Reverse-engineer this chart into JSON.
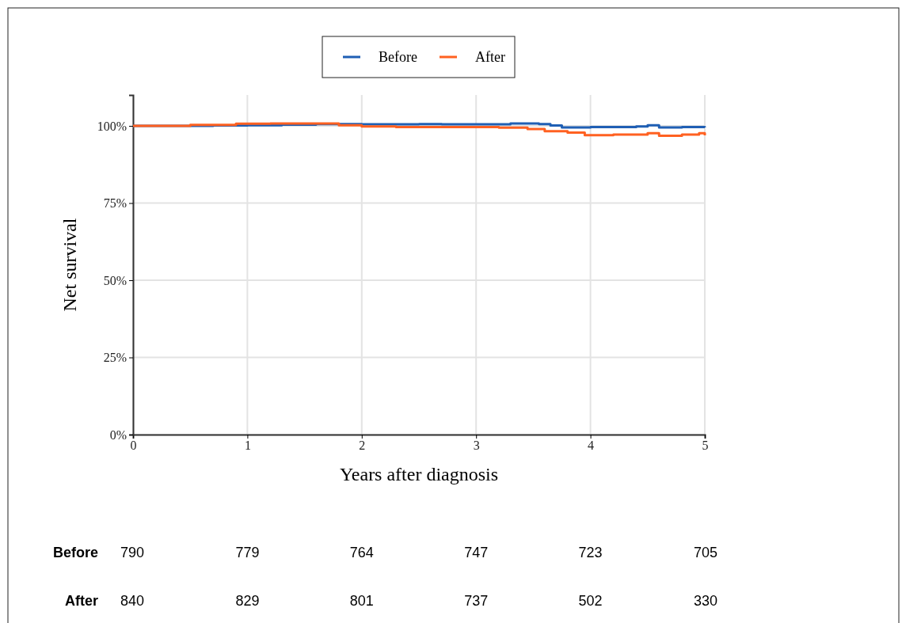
{
  "chart_data": {
    "type": "step",
    "xlabel": "Years after diagnosis",
    "ylabel": "Net survival",
    "xlim": [
      0,
      5
    ],
    "xticks": [
      0,
      1,
      2,
      3,
      4,
      5
    ],
    "ylim": [
      0,
      110
    ],
    "yticks": [
      {
        "value": 0,
        "label": "0%"
      },
      {
        "value": 25,
        "label": "25%"
      },
      {
        "value": 50,
        "label": "50%"
      },
      {
        "value": 75,
        "label": "75%"
      },
      {
        "value": 100,
        "label": "100%"
      }
    ],
    "grid": true,
    "legend": "top",
    "line_style": "solid",
    "marker": "none",
    "series": [
      {
        "name": "Before",
        "color": "#1f5fb4",
        "x": [
          0,
          0.7,
          1.0,
          1.3,
          1.6,
          2.0,
          2.5,
          2.7,
          3.0,
          3.3,
          3.55,
          3.65,
          3.75,
          4.0,
          4.4,
          4.5,
          4.6,
          4.8,
          5.0
        ],
        "values": [
          100,
          100.1,
          100.2,
          100.4,
          100.6,
          100.5,
          100.6,
          100.5,
          100.5,
          100.8,
          100.6,
          100.1,
          99.5,
          99.6,
          99.8,
          100.2,
          99.5,
          99.6,
          99.5
        ]
      },
      {
        "name": "After",
        "color": "#ff6121",
        "x": [
          0,
          0.5,
          0.9,
          1.2,
          1.6,
          1.8,
          2.0,
          2.3,
          3.0,
          3.2,
          3.45,
          3.6,
          3.8,
          3.95,
          4.2,
          4.5,
          4.6,
          4.8,
          4.95,
          5.0
        ],
        "values": [
          100,
          100.3,
          100.7,
          100.8,
          100.8,
          100.2,
          99.8,
          99.6,
          99.6,
          99.4,
          99.0,
          98.3,
          97.8,
          97.0,
          97.2,
          97.6,
          96.8,
          97.2,
          97.6,
          96.9
        ]
      }
    ],
    "annotations": [
      "Before",
      "790",
      "779",
      "764",
      "747",
      "723",
      "705",
      "After",
      "840",
      "829",
      "801",
      "737",
      "502",
      "330"
    ]
  }
}
